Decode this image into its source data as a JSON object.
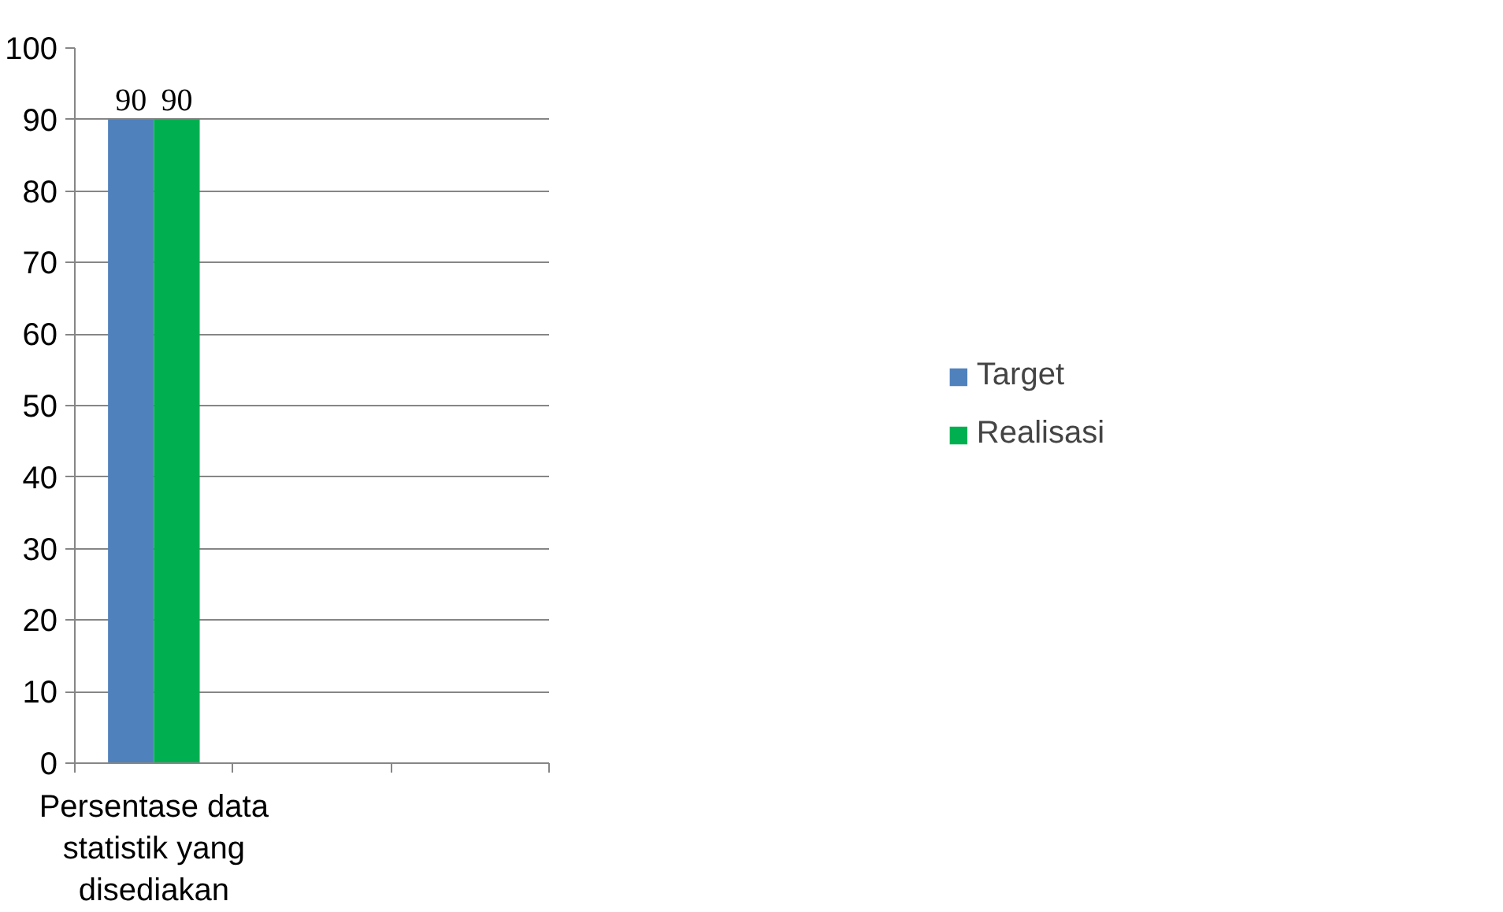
{
  "chart_data": {
    "type": "bar",
    "categories": [
      "Persentase data statistik yang disediakan",
      null,
      null
    ],
    "series": [
      {
        "name": "Target",
        "color": "#4f81bd",
        "values": [
          90,
          null,
          null
        ]
      },
      {
        "name": "Realisasi",
        "color": "#00b050",
        "values": [
          90,
          null,
          null
        ]
      }
    ],
    "ylim": [
      0,
      100
    ],
    "yticks": [
      0,
      10,
      20,
      30,
      40,
      50,
      60,
      70,
      80,
      90,
      100
    ],
    "grid": "y",
    "legend": "right",
    "data_labels": true
  }
}
